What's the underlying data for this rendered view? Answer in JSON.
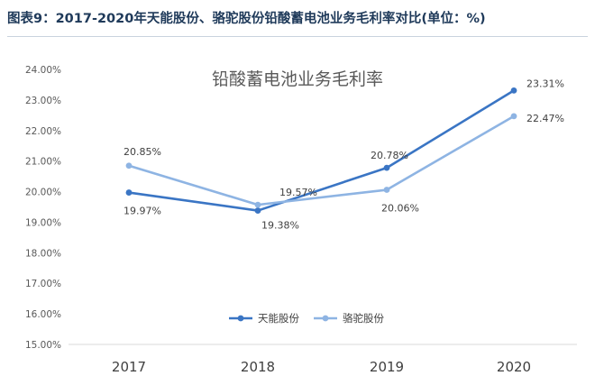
{
  "figure": {
    "title": "图表9：2017-2020年天能股份、骆驼股份铅酸蓄电池业务毛利率对比(单位：%)"
  },
  "chart_data": {
    "type": "line",
    "title": "铅酸蓄电池业务毛利率",
    "categories": [
      "2017",
      "2018",
      "2019",
      "2020"
    ],
    "ylim": [
      15,
      24
    ],
    "yticks": [
      "15.00%",
      "16.00%",
      "17.00%",
      "18.00%",
      "19.00%",
      "20.00%",
      "21.00%",
      "22.00%",
      "23.00%",
      "24.00%"
    ],
    "grid": false,
    "legend_position": "bottom-right",
    "series": [
      {
        "name": "天能股份",
        "color": "#3a75c4",
        "values": [
          19.97,
          19.38,
          20.78,
          23.31
        ],
        "labels": [
          "19.97%",
          "19.38%",
          "20.78%",
          "23.31%"
        ]
      },
      {
        "name": "骆驼股份",
        "color": "#8eb4e3",
        "values": [
          20.85,
          19.57,
          20.06,
          22.47
        ],
        "labels": [
          "20.85%",
          "19.57%",
          "20.06%",
          "22.47%"
        ]
      }
    ]
  }
}
